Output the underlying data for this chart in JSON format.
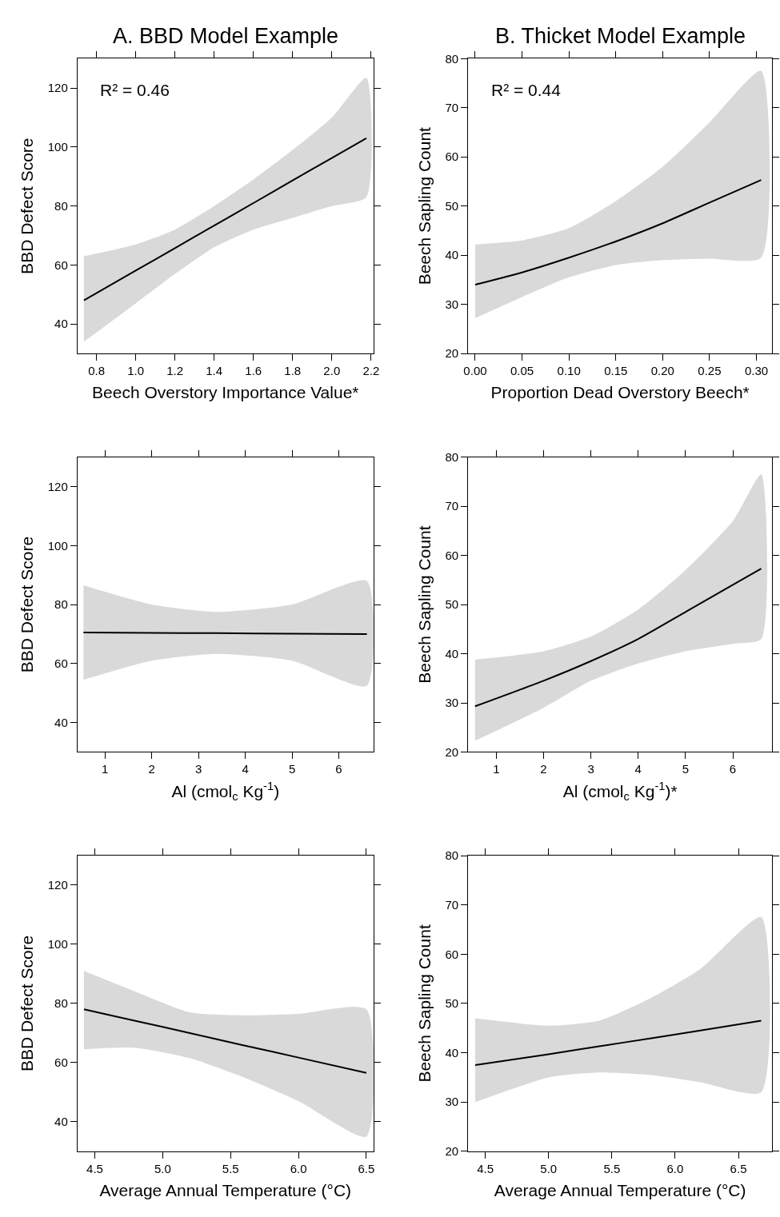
{
  "chart_data": [
    {
      "type": "line",
      "title": "A. BBD Model Example",
      "xlabel": "Beech Overstory Importance Value*",
      "ylabel": "BBD Defect Score",
      "annotations": [
        "R² = 0.46"
      ],
      "x": [
        0.736,
        1.0,
        1.2,
        1.4,
        1.6,
        1.8,
        2.0,
        2.176
      ],
      "series": [
        {
          "color": "#000000",
          "values": [
            48,
            58.1,
            65.7,
            73.4,
            81.0,
            88.7,
            96.3,
            103
          ],
          "lower": [
            34,
            47,
            57,
            66,
            72,
            76,
            80,
            83
          ],
          "upper": [
            63,
            67,
            72,
            80,
            89,
            99,
            110,
            123.5
          ]
        }
      ],
      "xlim": [
        0.703,
        2.212
      ],
      "ylim": [
        30,
        130
      ],
      "xticks": [
        0.8,
        {
          "value": 1,
          "label": "1.0"
        },
        1.2,
        1.4,
        1.6,
        1.8,
        {
          "value": 2,
          "label": "2.0"
        },
        2.2
      ],
      "yticks": [
        40,
        60,
        80,
        100,
        120
      ]
    },
    {
      "type": "line",
      "title": "B. Thicket Model Example",
      "xlabel": "Proportion Dead Overstory Beech*",
      "ylabel": "Beech Sapling Count",
      "annotations": [
        "R² = 0.44"
      ],
      "x": [
        0,
        0.05,
        0.1,
        0.15,
        0.2,
        0.25,
        0.305
      ],
      "series": [
        {
          "color": "#000000",
          "values": [
            34,
            36.5,
            39.5,
            42.8,
            46.5,
            50.7,
            55.3
          ],
          "lower": [
            27.2,
            31.5,
            35.5,
            38,
            39,
            39.3,
            39.5
          ],
          "upper": [
            42.2,
            43,
            45.5,
            51,
            58,
            67,
            77.5
          ]
        }
      ],
      "xlim": [
        -0.0075,
        0.3167
      ],
      "ylim": [
        20,
        80
      ],
      "xticks": [
        {
          "value": 0,
          "label": "0.00"
        },
        0.05,
        {
          "value": 0.1,
          "label": "0.10"
        },
        0.15,
        {
          "value": 0.2,
          "label": "0.20"
        },
        0.25,
        {
          "value": 0.3,
          "label": "0.30"
        }
      ],
      "yticks": [
        20,
        30,
        40,
        50,
        60,
        70,
        80
      ]
    },
    {
      "type": "line",
      "xlabel": "Al (cmol$_{c}$ Kg$^{-1}$)",
      "ylabel": "BBD Defect Score",
      "x": [
        0.54,
        2,
        3.4,
        5,
        6.6
      ],
      "series": [
        {
          "color": "#000000",
          "values": [
            70.5,
            70.4,
            70.3,
            70.1,
            70
          ],
          "lower": [
            54.5,
            61,
            63.3,
            61,
            52.5
          ],
          "upper": [
            86.5,
            80,
            77.5,
            80,
            88
          ]
        }
      ],
      "xlim": [
        0.41,
        6.74
      ],
      "ylim": [
        30,
        130
      ],
      "xticks": [
        1,
        2,
        3,
        4,
        5,
        6
      ],
      "yticks": [
        40,
        60,
        80,
        100,
        120
      ]
    },
    {
      "type": "line",
      "xlabel": "Al (cmol$_{c}$ Kg$^{-1}$)*",
      "ylabel": "Beech Sapling Count",
      "x": [
        0.55,
        2,
        3,
        4,
        5,
        6,
        6.6
      ],
      "series": [
        {
          "color": "#000000",
          "values": [
            29.3,
            34.5,
            38.5,
            43,
            48.5,
            54,
            57.3
          ],
          "lower": [
            22.3,
            29,
            34.5,
            38,
            40.5,
            42,
            43
          ],
          "upper": [
            38.8,
            40.5,
            43.5,
            49,
            57,
            67,
            76.5
          ]
        }
      ],
      "xlim": [
        0.404,
        6.83
      ],
      "ylim": [
        20,
        80
      ],
      "xticks": [
        1,
        2,
        3,
        4,
        5,
        6
      ],
      "yticks": [
        20,
        30,
        40,
        50,
        60,
        70,
        80
      ]
    },
    {
      "type": "line",
      "xlabel": "Average Annual Temperature (°C)",
      "ylabel": "BBD Defect Score",
      "x": [
        4.42,
        4.8,
        5.2,
        5.6,
        6.0,
        6.5
      ],
      "series": [
        {
          "color": "#000000",
          "values": [
            78,
            74.1,
            70,
            65.8,
            61.7,
            56.5
          ],
          "lower": [
            64.5,
            65,
            61.5,
            55,
            47,
            35
          ],
          "upper": [
            91,
            84,
            77,
            76,
            76.5,
            78
          ]
        }
      ],
      "xlim": [
        4.372,
        6.552
      ],
      "ylim": [
        30,
        130
      ],
      "xticks": [
        4.5,
        {
          "value": 5,
          "label": "5.0"
        },
        5.5,
        {
          "value": 6,
          "label": "6.0"
        },
        6.5
      ],
      "yticks": [
        40,
        60,
        80,
        100,
        120
      ]
    },
    {
      "type": "line",
      "xlabel": "Average Annual Temperature (°C)",
      "ylabel": "Beech Sapling Count",
      "x": [
        4.42,
        5.0,
        5.4,
        5.8,
        6.2,
        6.68
      ],
      "series": [
        {
          "color": "#000000",
          "values": [
            37.5,
            39.7,
            41.3,
            42.9,
            44.5,
            46.5
          ],
          "lower": [
            30,
            35,
            36,
            35.5,
            34,
            32
          ],
          "upper": [
            47,
            45.5,
            46.5,
            51,
            57,
            67.5
          ]
        }
      ],
      "xlim": [
        4.364,
        6.766
      ],
      "ylim": [
        20,
        80
      ],
      "xticks": [
        4.5,
        {
          "value": 5,
          "label": "5.0"
        },
        5.5,
        {
          "value": 6,
          "label": "6.0"
        },
        6.5
      ],
      "yticks": [
        20,
        30,
        40,
        50,
        60,
        70,
        80
      ]
    }
  ]
}
